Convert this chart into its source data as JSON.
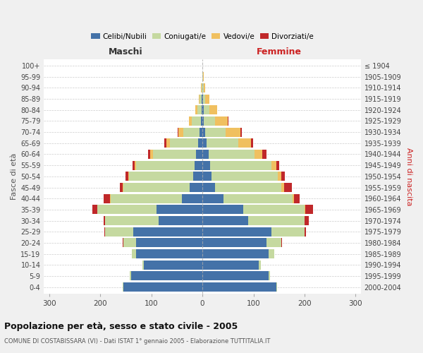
{
  "age_groups": [
    "0-4",
    "5-9",
    "10-14",
    "15-19",
    "20-24",
    "25-29",
    "30-34",
    "35-39",
    "40-44",
    "45-49",
    "50-54",
    "55-59",
    "60-64",
    "65-69",
    "70-74",
    "75-79",
    "80-84",
    "85-89",
    "90-94",
    "95-99",
    "100+"
  ],
  "birth_years": [
    "2000-2004",
    "1995-1999",
    "1990-1994",
    "1985-1989",
    "1980-1984",
    "1975-1979",
    "1970-1974",
    "1965-1969",
    "1960-1964",
    "1955-1959",
    "1950-1954",
    "1945-1949",
    "1940-1944",
    "1935-1939",
    "1930-1934",
    "1925-1929",
    "1920-1924",
    "1915-1919",
    "1910-1914",
    "1905-1909",
    "≤ 1904"
  ],
  "maschi": {
    "celibi": [
      155,
      140,
      115,
      130,
      130,
      135,
      85,
      90,
      40,
      25,
      18,
      15,
      12,
      8,
      5,
      3,
      2,
      1,
      0,
      0,
      0
    ],
    "coniugati": [
      1,
      2,
      3,
      8,
      25,
      55,
      105,
      115,
      140,
      130,
      125,
      115,
      85,
      55,
      32,
      18,
      8,
      4,
      2,
      0,
      0
    ],
    "vedovi": [
      0,
      0,
      0,
      0,
      0,
      0,
      0,
      0,
      1,
      1,
      2,
      3,
      5,
      8,
      10,
      5,
      4,
      2,
      1,
      0,
      0
    ],
    "divorziati": [
      0,
      0,
      0,
      0,
      1,
      2,
      3,
      10,
      12,
      5,
      5,
      4,
      5,
      3,
      1,
      0,
      0,
      0,
      0,
      0,
      0
    ]
  },
  "femmine": {
    "nubili": [
      145,
      130,
      110,
      130,
      125,
      135,
      90,
      80,
      42,
      25,
      18,
      15,
      12,
      8,
      5,
      3,
      2,
      1,
      0,
      0,
      0
    ],
    "coniugate": [
      1,
      2,
      4,
      10,
      30,
      65,
      110,
      120,
      135,
      130,
      130,
      120,
      90,
      62,
      40,
      22,
      12,
      5,
      2,
      1,
      0
    ],
    "vedove": [
      0,
      0,
      0,
      0,
      0,
      0,
      0,
      1,
      3,
      5,
      7,
      10,
      15,
      25,
      30,
      25,
      15,
      8,
      3,
      1,
      0
    ],
    "divorziate": [
      0,
      0,
      0,
      0,
      1,
      3,
      8,
      15,
      10,
      15,
      6,
      6,
      8,
      4,
      2,
      1,
      0,
      0,
      0,
      0,
      0
    ]
  },
  "colors": {
    "celibi": "#4472a8",
    "coniugati": "#c5d9a0",
    "vedovi": "#f0c060",
    "divorziati": "#c0282a"
  },
  "xlim": 310,
  "title": "Popolazione per età, sesso e stato civile - 2005",
  "subtitle": "COMUNE DI COSTABISSARA (VI) - Dati ISTAT 1° gennaio 2005 - Elaborazione TUTTITALIA.IT",
  "ylabel_left": "Fasce di età",
  "ylabel_right": "Anni di nascita",
  "xlabel_left": "Maschi",
  "xlabel_right": "Femmine",
  "legend_labels": [
    "Celibi/Nubili",
    "Coniugati/e",
    "Vedovi/e",
    "Divorziati/e"
  ],
  "bg_color": "#f0f0f0",
  "plot_bg": "#ffffff"
}
